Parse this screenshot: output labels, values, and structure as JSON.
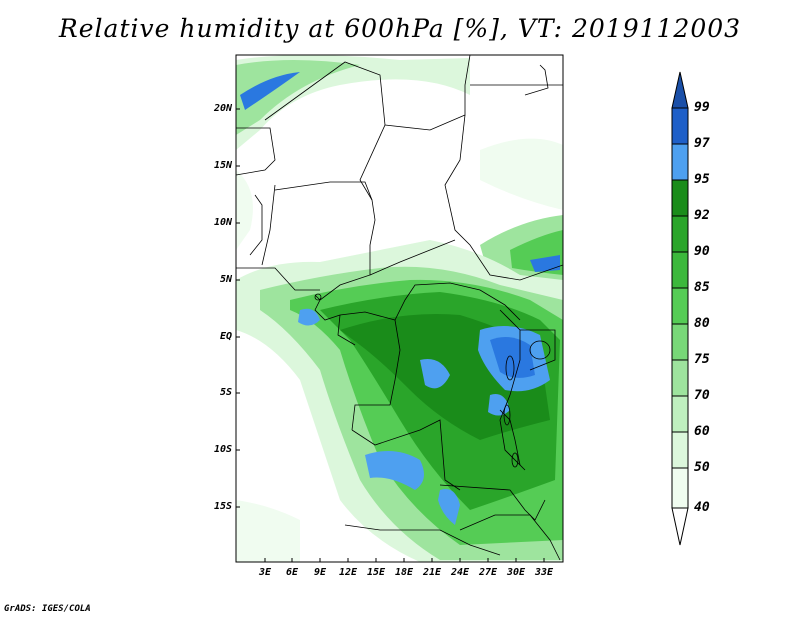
{
  "title": "Relative humidity at 600hPa [%], VT: 2019112003",
  "credit": "GrADS: IGES/COLA",
  "map": {
    "lat_labels": [
      "20N",
      "15N",
      "10N",
      "5N",
      "EQ",
      "5S",
      "10S",
      "15S"
    ],
    "lon_labels": [
      "3E",
      "6E",
      "9E",
      "12E",
      "15E",
      "18E",
      "21E",
      "24E",
      "27E",
      "30E",
      "33E"
    ]
  },
  "colorbar": {
    "labels": [
      "99",
      "97",
      "95",
      "92",
      "90",
      "85",
      "80",
      "75",
      "70",
      "60",
      "50",
      "40"
    ],
    "colors": [
      "#1e5fc8",
      "#2a78e0",
      "#4ea0f0",
      "#1a8c1a",
      "#2aa52a",
      "#3cb83c",
      "#55cc55",
      "#78d878",
      "#9ee49e",
      "#bfefbf",
      "#dcf7dc",
      "#f0fcf0"
    ],
    "top_arrow_color": "#1a4fa8"
  }
}
